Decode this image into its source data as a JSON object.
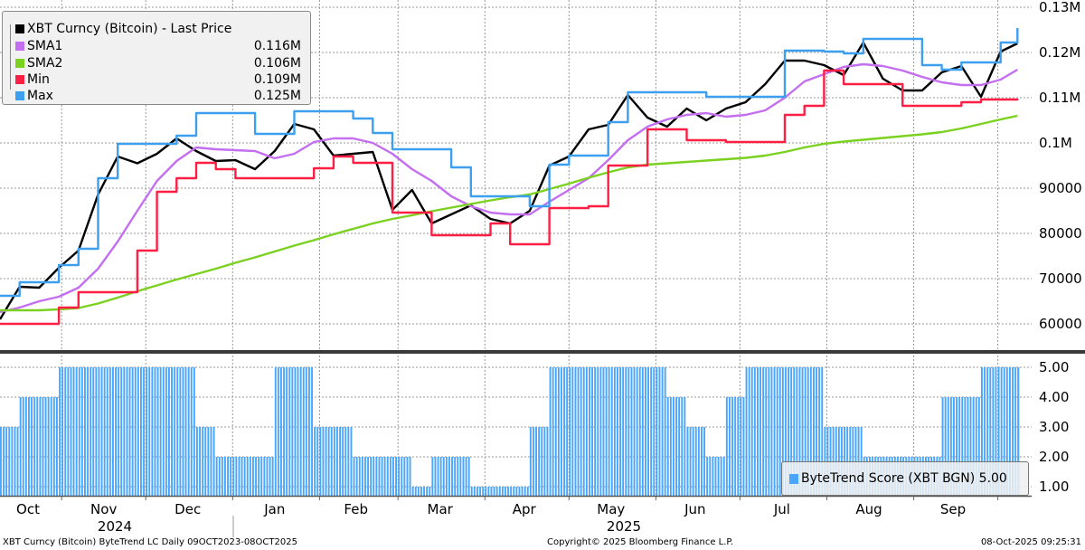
{
  "legend": {
    "title": "XBT Curncy (Bitcoin) - Last Price",
    "items": [
      {
        "label": "SMA1",
        "value": "0.116M",
        "color": "#c46ef0"
      },
      {
        "label": "SMA2",
        "value": "0.106M",
        "color": "#7ad11f"
      },
      {
        "label": "Min",
        "value": "0.109M",
        "color": "#ff1f44"
      },
      {
        "label": "Max",
        "value": "0.125M",
        "color": "#3d9ff0"
      }
    ],
    "price_color": "#000000"
  },
  "score_legend": {
    "label": "ByteTrend Score (XBT BGN) 5.00",
    "color": "#4aa5ff"
  },
  "footer": {
    "left": "XBT Curncy (Bitcoin) ByteTrend LC Daily 09OCT2023-08OCT2025",
    "center": "Copyright© 2025 Bloomberg Finance L.P.",
    "right": "08-Oct-2025 09:25:31"
  },
  "chart_data": [
    {
      "type": "line",
      "title": "XBT Curncy (Bitcoin) - Last Price",
      "y_tick_labels": [
        "0.13M",
        "0.12M",
        "0.11M",
        "0.1M",
        "90000",
        "80000",
        "70000",
        "60000"
      ],
      "y_ticks": [
        130000,
        120000,
        110000,
        100000,
        90000,
        80000,
        70000,
        60000
      ],
      "ylim": [
        53000,
        131600
      ],
      "grid": true,
      "legend_position": "top-left",
      "x": [
        "2024-10-10",
        "2024-10-17",
        "2024-10-24",
        "2024-10-31",
        "2024-11-07",
        "2024-11-14",
        "2024-11-21",
        "2024-11-28",
        "2024-12-05",
        "2024-12-12",
        "2024-12-19",
        "2024-12-26",
        "2025-01-02",
        "2025-01-09",
        "2025-01-16",
        "2025-01-23",
        "2025-01-30",
        "2025-02-06",
        "2025-02-13",
        "2025-02-20",
        "2025-02-27",
        "2025-03-06",
        "2025-03-13",
        "2025-03-20",
        "2025-03-27",
        "2025-04-03",
        "2025-04-10",
        "2025-04-17",
        "2025-04-24",
        "2025-05-01",
        "2025-05-08",
        "2025-05-15",
        "2025-05-22",
        "2025-05-29",
        "2025-06-05",
        "2025-06-12",
        "2025-06-19",
        "2025-06-26",
        "2025-07-03",
        "2025-07-10",
        "2025-07-17",
        "2025-07-24",
        "2025-07-31",
        "2025-08-07",
        "2025-08-14",
        "2025-08-21",
        "2025-08-28",
        "2025-09-04",
        "2025-09-11",
        "2025-09-18",
        "2025-09-25",
        "2025-10-02",
        "2025-10-08"
      ],
      "series": [
        {
          "name": "XBT Curncy (Bitcoin) - Last Price",
          "color": "#000000",
          "values": [
            61000,
            68200,
            68000,
            72400,
            76200,
            88600,
            97000,
            95500,
            97600,
            101000,
            98200,
            96000,
            96200,
            94200,
            98200,
            104200,
            103000,
            97200,
            97600,
            98000,
            85200,
            89600,
            82200,
            84200,
            86200,
            83200,
            82200,
            85000,
            95000,
            97000,
            103000,
            104000,
            110600,
            105600,
            103600,
            107600,
            105000,
            107600,
            109000,
            113000,
            118200,
            118200,
            117200,
            115000,
            122200,
            114200,
            111600,
            111600,
            115600,
            117000,
            110200,
            120200,
            122000
          ]
        },
        {
          "name": "SMA1",
          "color": "#c46ef0",
          "values": [
            62600,
            63600,
            65000,
            66000,
            68000,
            72200,
            78200,
            85000,
            91600,
            96000,
            99000,
            98600,
            98400,
            98200,
            96600,
            97600,
            100200,
            101000,
            101000,
            100000,
            97600,
            94200,
            91600,
            88200,
            86000,
            84600,
            84200,
            84200,
            87000,
            89600,
            92200,
            96200,
            100600,
            103600,
            105200,
            106200,
            106600,
            105800,
            106200,
            107200,
            110000,
            113600,
            115200,
            116800,
            117400,
            117000,
            116000,
            114600,
            113400,
            112800,
            112800,
            114000,
            116200
          ]
        },
        {
          "name": "SMA2",
          "color": "#7ad11f",
          "values": [
            63000,
            63000,
            63000,
            63200,
            63500,
            64500,
            65800,
            67200,
            68500,
            69800,
            71000,
            72200,
            73500,
            74700,
            76000,
            77300,
            78500,
            79800,
            81000,
            82200,
            83200,
            84000,
            84900,
            85700,
            86500,
            87300,
            88000,
            88600,
            89800,
            91000,
            92300,
            93500,
            94600,
            95200,
            95500,
            95800,
            96100,
            96400,
            96700,
            97200,
            98000,
            99000,
            99800,
            100300,
            100700,
            101100,
            101500,
            101900,
            102400,
            103200,
            104200,
            105200,
            106000
          ]
        },
        {
          "name": "Min",
          "color": "#ff1f44",
          "values": [
            60000,
            60000,
            60000,
            63600,
            67000,
            67000,
            67000,
            76200,
            89200,
            92200,
            95600,
            94200,
            92200,
            92200,
            92200,
            92200,
            94400,
            97000,
            95600,
            95600,
            84600,
            84600,
            79600,
            79600,
            79600,
            82200,
            77600,
            77600,
            85600,
            85600,
            86000,
            95000,
            95000,
            103000,
            103000,
            100600,
            100600,
            100200,
            100200,
            100200,
            106200,
            108200,
            116000,
            113000,
            113000,
            113000,
            108200,
            108200,
            108200,
            109000,
            109600,
            109600,
            109400
          ]
        },
        {
          "name": "Max",
          "color": "#3d9ff0",
          "values": [
            66200,
            69200,
            69200,
            73000,
            76600,
            92200,
            99800,
            99800,
            99800,
            101600,
            106600,
            106600,
            106600,
            102000,
            102000,
            107000,
            107000,
            107000,
            105400,
            102200,
            98600,
            98600,
            98600,
            94600,
            88200,
            88200,
            88200,
            86000,
            95200,
            97200,
            97200,
            104600,
            111200,
            111200,
            111200,
            111200,
            110200,
            110200,
            110200,
            110200,
            120400,
            120400,
            120200,
            119800,
            123000,
            123000,
            123000,
            117200,
            116200,
            117800,
            117800,
            122200,
            125400
          ]
        }
      ]
    },
    {
      "type": "bar",
      "title": "ByteTrend Score (XBT BGN) 5.00",
      "y_tick_labels": [
        "5.00",
        "4.00",
        "3.00",
        "2.00",
        "1.00"
      ],
      "y_ticks": [
        5,
        4,
        3,
        2,
        1
      ],
      "grid": true,
      "legend_position": "bottom-right",
      "x": "same weekly dates as price panel",
      "values": [
        3,
        4,
        4,
        5,
        5,
        5,
        5,
        5,
        5,
        5,
        3,
        2,
        2,
        2,
        5,
        5,
        3,
        3,
        2,
        2,
        2,
        1,
        2,
        2,
        1,
        1,
        1,
        3,
        5,
        5,
        5,
        5,
        5,
        5,
        4,
        3,
        2,
        4,
        5,
        5,
        5,
        5,
        3,
        3,
        2,
        2,
        2,
        2,
        4,
        4,
        5,
        5,
        5
      ],
      "color": "#4aa5ff"
    }
  ],
  "x_axis": {
    "months": [
      "Oct",
      "Nov",
      "Dec",
      "Jan",
      "Feb",
      "Mar",
      "Apr",
      "May",
      "Jun",
      "Jul",
      "Aug",
      "Sep"
    ],
    "years": [
      "2024",
      "2025"
    ]
  }
}
